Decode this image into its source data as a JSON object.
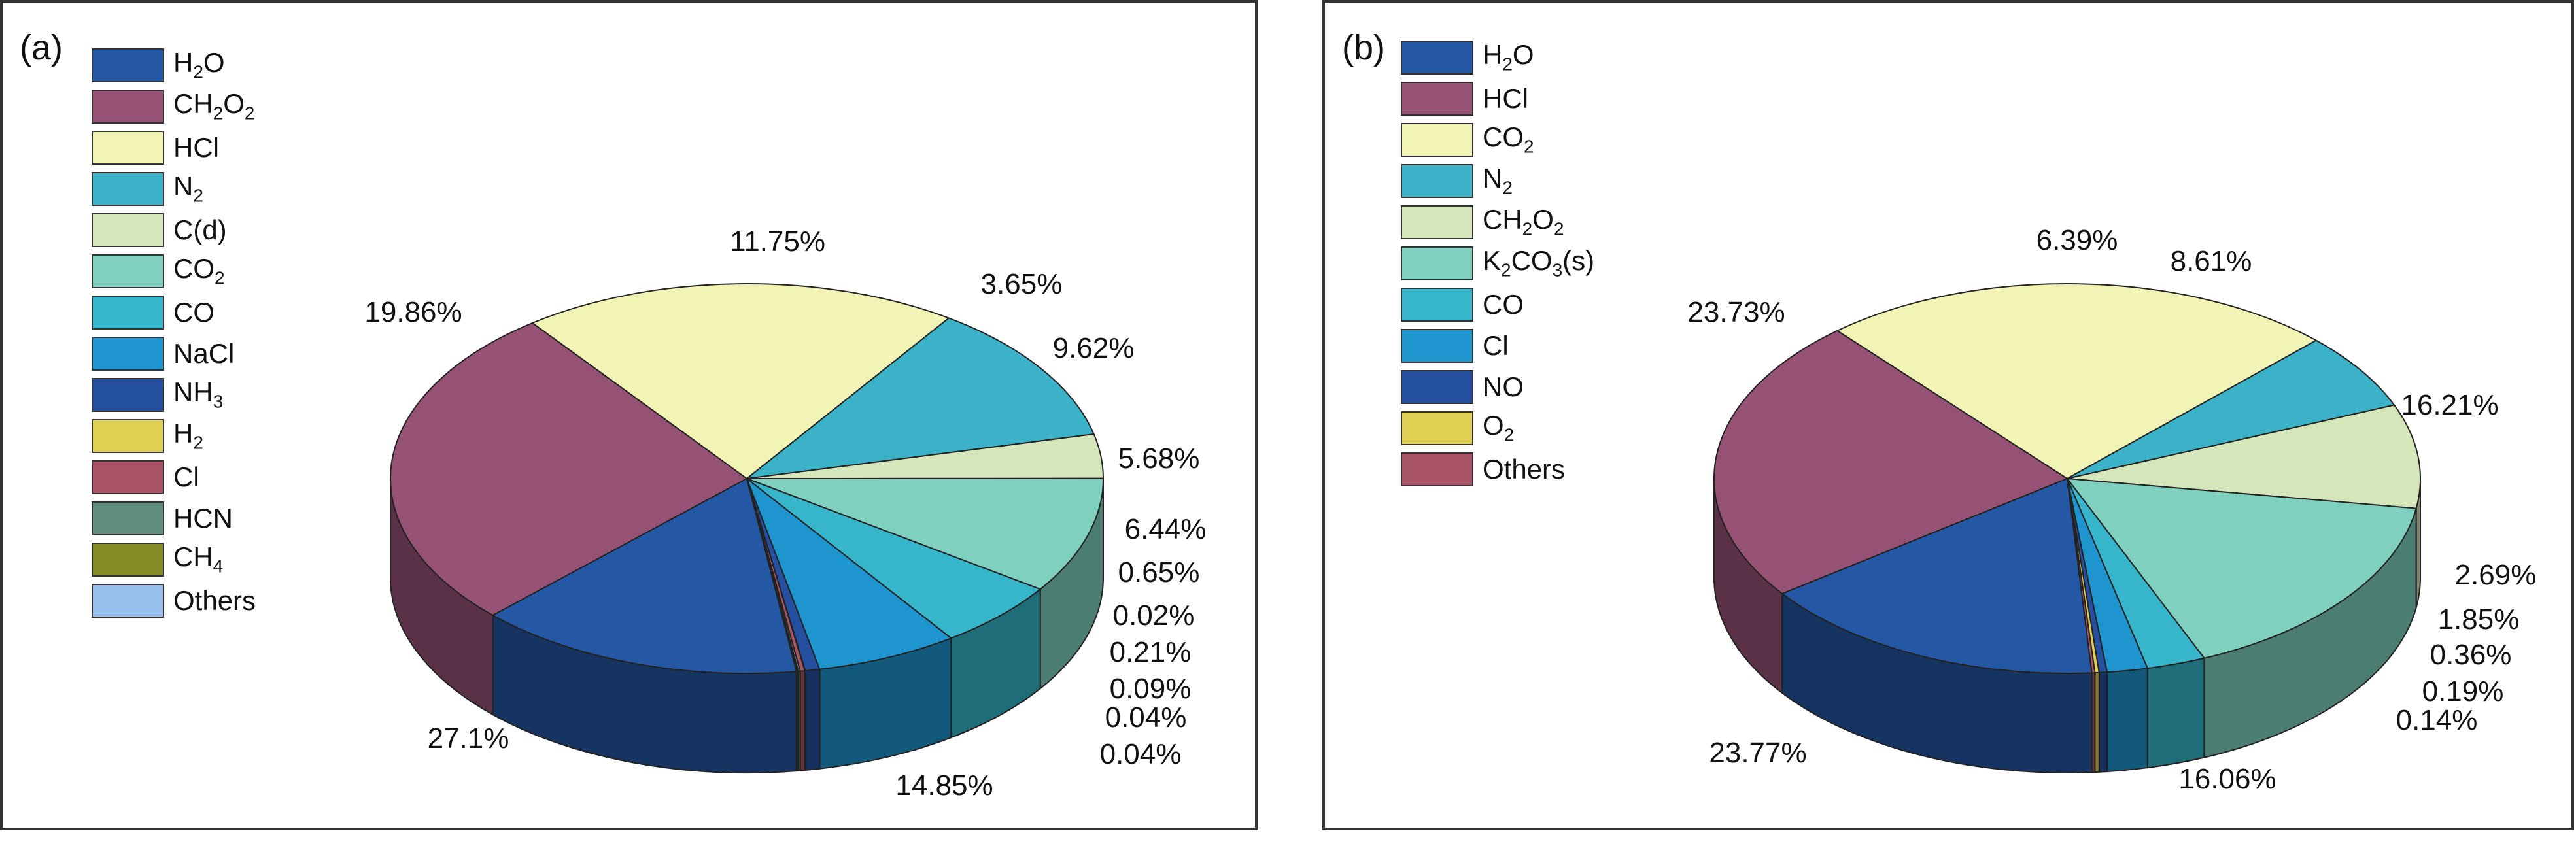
{
  "chart_data": [
    {
      "type": "pie",
      "panel_label": "(a)",
      "legend": [
        {
          "name": "H2O",
          "sub": "2",
          "color": "#2457A4"
        },
        {
          "name": "CH2O2",
          "color": "#965275"
        },
        {
          "name": "HCl",
          "color": "#F2F4B6"
        },
        {
          "name": "N2",
          "color": "#3BB2C8"
        },
        {
          "name": "C(d)",
          "color": "#D4E6BA"
        },
        {
          "name": "CO2",
          "color": "#7FD0BF"
        },
        {
          "name": "CO",
          "color": "#36B5CB"
        },
        {
          "name": "NaCl",
          "color": "#1E95CF"
        },
        {
          "name": "NH3",
          "color": "#2550A0"
        },
        {
          "name": "H2",
          "color": "#E1CF53"
        },
        {
          "name": "Cl",
          "color": "#AA5567"
        },
        {
          "name": "HCN",
          "color": "#5E8D7D"
        },
        {
          "name": "CH4",
          "color": "#838A26"
        },
        {
          "name": "Others",
          "color": "#99BFEF"
        }
      ],
      "slices": [
        {
          "name": "H2O",
          "value": 14.85,
          "label": "14.85%"
        },
        {
          "name": "CH2O2",
          "value": 27.1,
          "label": "27.1%"
        },
        {
          "name": "HCl",
          "value": 19.86,
          "label": "19.86%"
        },
        {
          "name": "N2",
          "value": 11.75,
          "label": "11.75%"
        },
        {
          "name": "C(d)",
          "value": 3.65,
          "label": "3.65%"
        },
        {
          "name": "CO2",
          "value": 9.62,
          "label": "9.62%"
        },
        {
          "name": "CO",
          "value": 5.68,
          "label": "5.68%"
        },
        {
          "name": "NaCl",
          "value": 6.44,
          "label": "6.44%"
        },
        {
          "name": "NH3",
          "value": 0.65,
          "label": "0.65%"
        },
        {
          "name": "H2",
          "value": 0.02,
          "label": "0.02%"
        },
        {
          "name": "Cl",
          "value": 0.21,
          "label": "0.21%"
        },
        {
          "name": "HCN",
          "value": 0.09,
          "label": "0.09%"
        },
        {
          "name": "CH4",
          "value": 0.04,
          "label": "0.04%"
        },
        {
          "name": "Others",
          "value": 0.04,
          "label": "0.04%"
        }
      ]
    },
    {
      "type": "pie",
      "panel_label": "(b)",
      "legend": [
        {
          "name": "H2O",
          "color": "#2457A4"
        },
        {
          "name": "HCl",
          "color": "#965275"
        },
        {
          "name": "CO2",
          "color": "#F2F4B6"
        },
        {
          "name": "N2",
          "color": "#3BB2C8"
        },
        {
          "name": "CH2O2",
          "color": "#D4E6BA"
        },
        {
          "name": "K2CO3(s)",
          "color": "#7FD0BF"
        },
        {
          "name": "CO",
          "color": "#36B5CB"
        },
        {
          "name": "Cl",
          "color": "#1E95CF"
        },
        {
          "name": "NO",
          "color": "#2550A0"
        },
        {
          "name": "O2",
          "color": "#E1CF53"
        },
        {
          "name": "Others",
          "color": "#AA5567"
        }
      ],
      "slices": [
        {
          "name": "H2O",
          "value": 16.06,
          "label": "16.06%"
        },
        {
          "name": "HCl",
          "value": 23.77,
          "label": "23.77%"
        },
        {
          "name": "CO2",
          "value": 23.73,
          "label": "23.73%"
        },
        {
          "name": "N2",
          "value": 6.39,
          "label": "6.39%"
        },
        {
          "name": "CH2O2",
          "value": 8.61,
          "label": "8.61%"
        },
        {
          "name": "K2CO3(s)",
          "value": 16.21,
          "label": "16.21%"
        },
        {
          "name": "CO",
          "value": 2.69,
          "label": "2.69%"
        },
        {
          "name": "Cl",
          "value": 1.85,
          "label": "1.85%"
        },
        {
          "name": "NO",
          "value": 0.36,
          "label": "0.36%"
        },
        {
          "name": "O2",
          "value": 0.19,
          "label": "0.19%"
        },
        {
          "name": "Others",
          "value": 0.14,
          "label": "0.14%"
        }
      ]
    }
  ]
}
